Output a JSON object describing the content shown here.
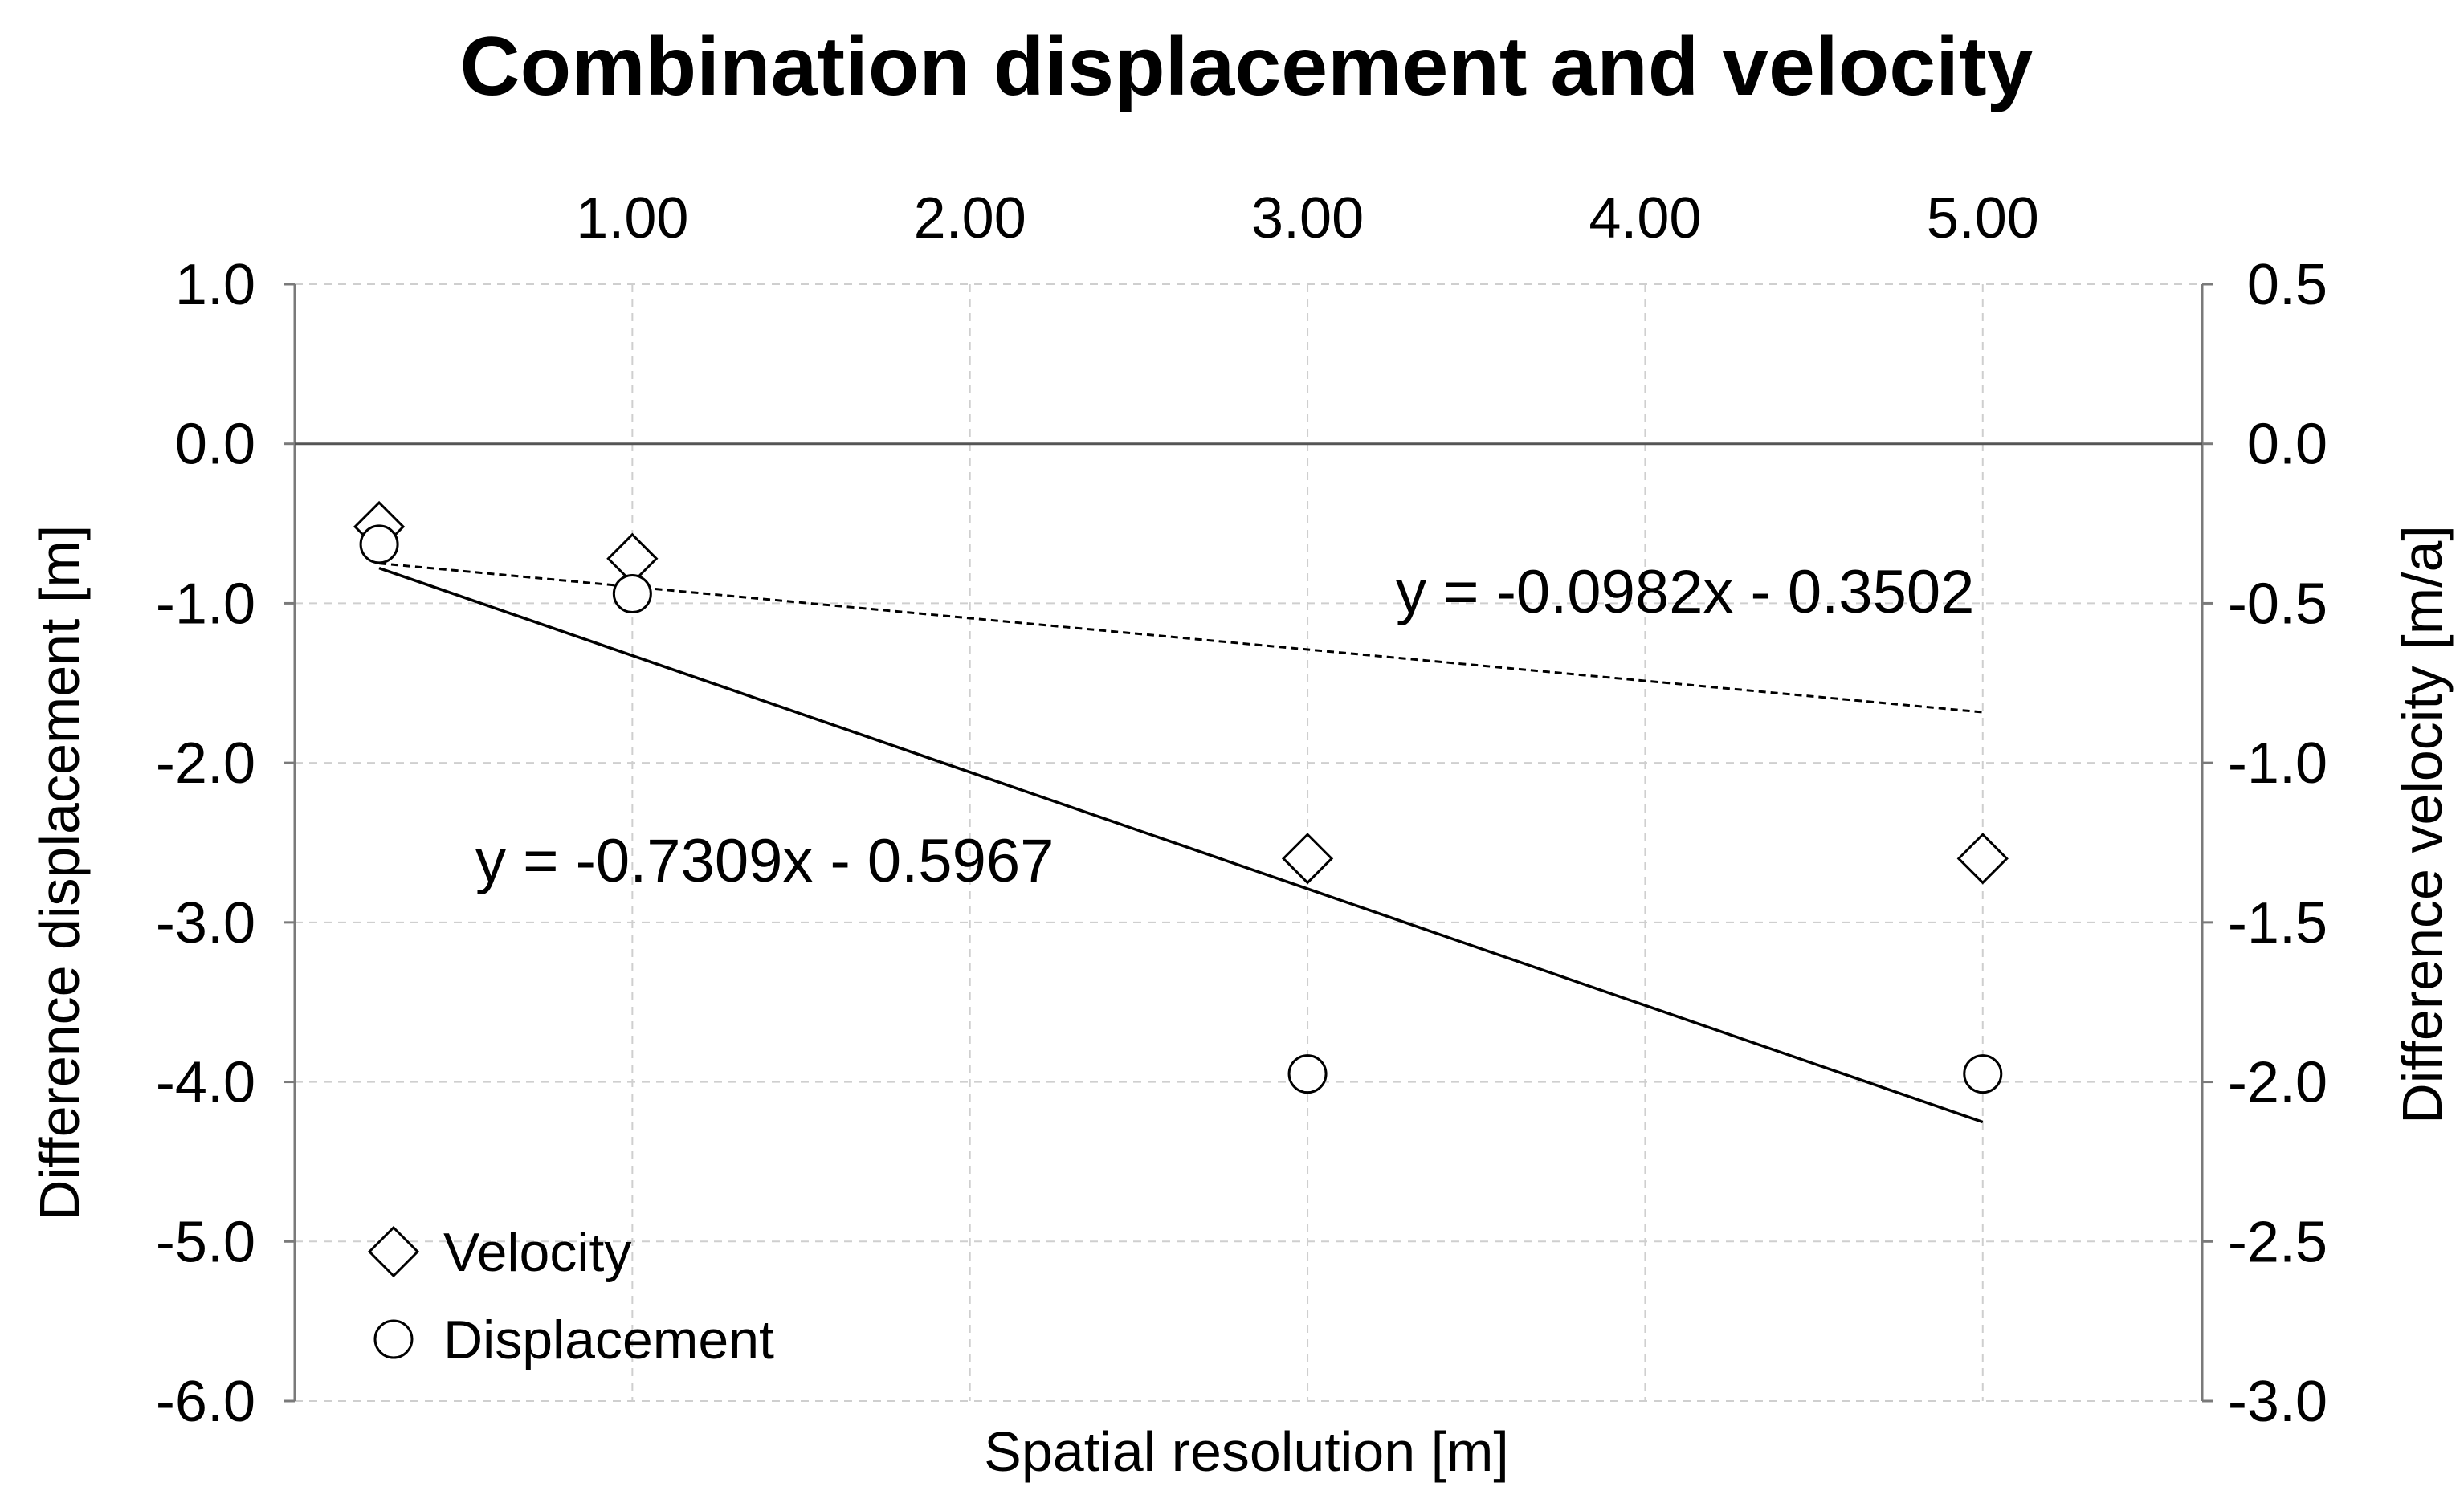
{
  "chart_data": {
    "type": "scatter",
    "title": "Combination displacement and velocity",
    "xlabel": "Spatial resolution [m]",
    "ylabel_left": "Difference displacement [m]",
    "ylabel_right": "Difference velocity [m/a]",
    "x_ticks": [
      "1.00",
      "2.00",
      "3.00",
      "4.00",
      "5.00"
    ],
    "x_tick_values": [
      1,
      2,
      3,
      4,
      5
    ],
    "x_range": [
      0,
      5.65
    ],
    "y_left_ticks": [
      "1.0",
      "0.0",
      "-1.0",
      "-2.0",
      "-3.0",
      "-4.0",
      "-5.0",
      "-6.0"
    ],
    "y_left_tick_values": [
      1,
      0,
      -1,
      -2,
      -3,
      -4,
      -5,
      -6
    ],
    "y_left_range": [
      -6,
      1
    ],
    "y_right_ticks": [
      "0.5",
      "0.0",
      "-0.5",
      "-1.0",
      "-1.5",
      "-2.0",
      "-2.5",
      "-3.0"
    ],
    "y_right_tick_values": [
      0.5,
      0,
      -0.5,
      -1,
      -1.5,
      -2,
      -2.5,
      -3
    ],
    "y_right_range": [
      -3,
      0.5
    ],
    "grid": true,
    "legend_position": "bottom-left",
    "series": [
      {
        "name": "Velocity",
        "marker": "diamond",
        "axis": "right",
        "points": [
          {
            "x": 0.25,
            "y": -0.26
          },
          {
            "x": 1.0,
            "y": -0.36
          },
          {
            "x": 3.0,
            "y": -1.3
          },
          {
            "x": 5.0,
            "y": -1.3
          }
        ],
        "trendline": {
          "equation": "y = -0.0982x - 0.3502",
          "slope": -0.0982,
          "intercept": -0.3502,
          "x_from": 0.25,
          "x_to": 5.0,
          "style": "dashed"
        }
      },
      {
        "name": "Displacement",
        "marker": "circle",
        "axis": "left",
        "points": [
          {
            "x": 0.25,
            "y": -0.63
          },
          {
            "x": 1.0,
            "y": -0.94
          },
          {
            "x": 3.0,
            "y": -3.95
          },
          {
            "x": 5.0,
            "y": -3.95
          }
        ],
        "trendline": {
          "equation": "y = -0.7309x - 0.5967",
          "slope": -0.7309,
          "intercept": -0.5967,
          "x_from": 0.25,
          "x_to": 5.0,
          "style": "solid"
        }
      }
    ]
  }
}
